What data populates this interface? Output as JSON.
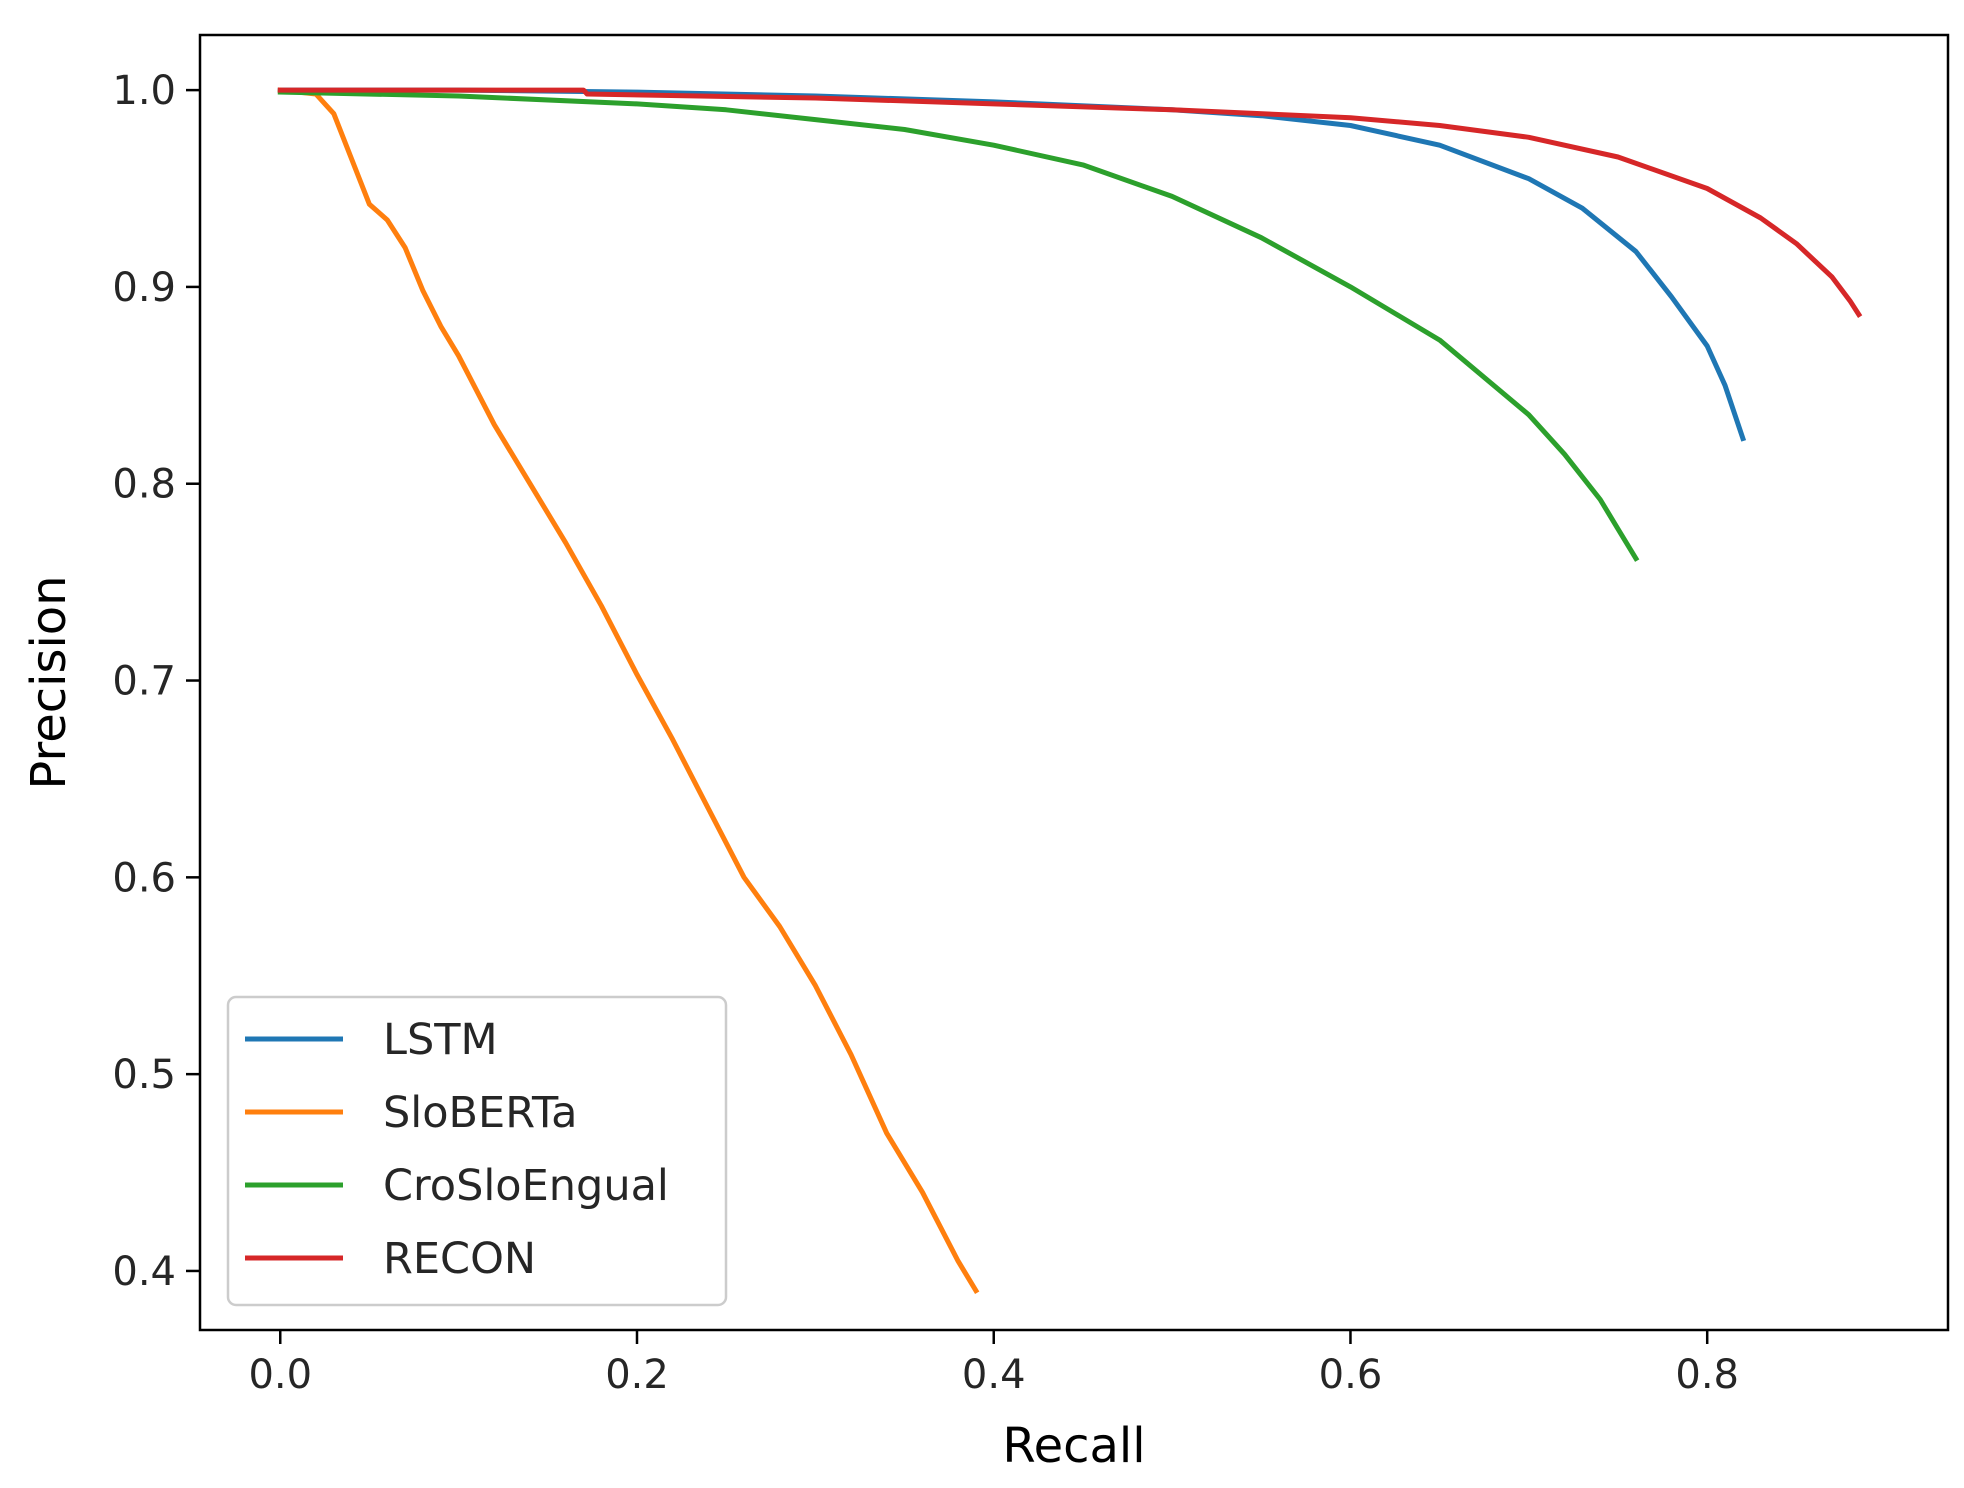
{
  "chart_data": {
    "type": "line",
    "title": "",
    "xlabel": "Recall",
    "ylabel": "Precision",
    "xlim": [
      -0.045,
      0.935
    ],
    "ylim": [
      0.37,
      1.028
    ],
    "xticks": [
      0.0,
      0.2,
      0.4,
      0.6,
      0.8
    ],
    "xtick_labels": [
      "0.0",
      "0.2",
      "0.4",
      "0.6",
      "0.8"
    ],
    "yticks": [
      0.4,
      0.5,
      0.6,
      0.7,
      0.8,
      0.9,
      1.0
    ],
    "ytick_labels": [
      "0.4",
      "0.5",
      "0.6",
      "0.7",
      "0.8",
      "0.9",
      "1.0"
    ],
    "grid": false,
    "legend_position": "lower-left",
    "series": [
      {
        "name": "LSTM",
        "color": "#1f77b4",
        "x": [
          0.0,
          0.1,
          0.2,
          0.3,
          0.4,
          0.5,
          0.55,
          0.6,
          0.65,
          0.7,
          0.73,
          0.76,
          0.78,
          0.8,
          0.81,
          0.82
        ],
        "y": [
          1.0,
          1.0,
          0.999,
          0.997,
          0.994,
          0.99,
          0.987,
          0.982,
          0.972,
          0.955,
          0.94,
          0.918,
          0.895,
          0.87,
          0.85,
          0.823
        ]
      },
      {
        "name": "SloBERTa",
        "color": "#ff7f0e",
        "x": [
          0.0,
          0.02,
          0.03,
          0.04,
          0.05,
          0.06,
          0.07,
          0.08,
          0.09,
          0.1,
          0.12,
          0.14,
          0.16,
          0.18,
          0.2,
          0.22,
          0.24,
          0.26,
          0.28,
          0.3,
          0.32,
          0.34,
          0.36,
          0.38,
          0.39
        ],
        "y": [
          1.0,
          0.998,
          0.988,
          0.965,
          0.942,
          0.934,
          0.92,
          0.898,
          0.88,
          0.865,
          0.83,
          0.8,
          0.77,
          0.738,
          0.703,
          0.67,
          0.635,
          0.6,
          0.575,
          0.545,
          0.51,
          0.47,
          0.44,
          0.405,
          0.39
        ]
      },
      {
        "name": "CroSloEngual",
        "color": "#2ca02c",
        "x": [
          0.0,
          0.1,
          0.2,
          0.25,
          0.3,
          0.35,
          0.4,
          0.45,
          0.5,
          0.55,
          0.6,
          0.65,
          0.7,
          0.72,
          0.74,
          0.75,
          0.76
        ],
        "y": [
          0.999,
          0.997,
          0.993,
          0.99,
          0.985,
          0.98,
          0.972,
          0.962,
          0.946,
          0.925,
          0.9,
          0.873,
          0.835,
          0.815,
          0.792,
          0.777,
          0.762
        ]
      },
      {
        "name": "RECON",
        "color": "#d62728",
        "x": [
          0.0,
          0.17,
          0.172,
          0.3,
          0.4,
          0.5,
          0.6,
          0.65,
          0.7,
          0.75,
          0.8,
          0.83,
          0.85,
          0.87,
          0.88,
          0.885
        ],
        "y": [
          1.0,
          1.0,
          0.998,
          0.996,
          0.993,
          0.99,
          0.986,
          0.982,
          0.976,
          0.966,
          0.95,
          0.935,
          0.922,
          0.905,
          0.893,
          0.886
        ]
      }
    ]
  }
}
